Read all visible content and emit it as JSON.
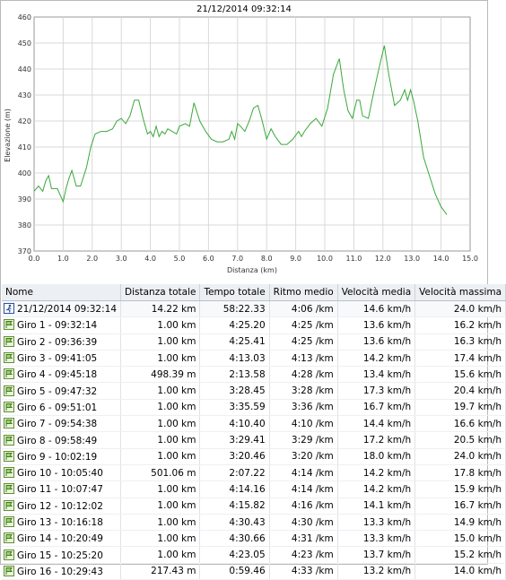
{
  "chart_data": {
    "type": "line",
    "title": "21/12/2014 09:32:14",
    "xlabel": "Distanza (km)",
    "ylabel": "Elevazione (m)",
    "xlim": [
      0,
      15
    ],
    "ylim": [
      370,
      460
    ],
    "xticks": [
      "0.0",
      "1.0",
      "2.0",
      "3.0",
      "4.0",
      "5.0",
      "6.0",
      "7.0",
      "8.0",
      "9.0",
      "10.0",
      "11.0",
      "12.0",
      "13.0",
      "14.0",
      "15.0"
    ],
    "yticks": [
      "370",
      "380",
      "390",
      "400",
      "410",
      "420",
      "430",
      "440",
      "450",
      "460"
    ],
    "grid": true,
    "color": "#3aa83a",
    "series": [
      {
        "x": [
          0.0,
          0.15,
          0.3,
          0.4,
          0.5,
          0.6,
          0.8,
          1.0,
          1.1,
          1.2,
          1.3,
          1.45,
          1.6,
          1.8,
          1.95,
          2.1,
          2.3,
          2.5,
          2.7,
          2.85,
          3.0,
          3.15,
          3.3,
          3.45,
          3.6,
          3.75,
          3.9,
          4.0,
          4.1,
          4.2,
          4.3,
          4.4,
          4.5,
          4.6,
          4.75,
          4.9,
          5.0,
          5.2,
          5.35,
          5.5,
          5.7,
          5.9,
          6.1,
          6.3,
          6.5,
          6.7,
          6.8,
          6.9,
          7.0,
          7.1,
          7.25,
          7.4,
          7.55,
          7.7,
          7.85,
          8.0,
          8.15,
          8.3,
          8.5,
          8.7,
          8.9,
          9.1,
          9.2,
          9.3,
          9.5,
          9.7,
          9.9,
          10.1,
          10.3,
          10.5,
          10.65,
          10.8,
          10.95,
          11.1,
          11.2,
          11.3,
          11.5,
          11.7,
          11.9,
          12.05,
          12.2,
          12.4,
          12.6,
          12.75,
          12.85,
          12.95,
          13.05,
          13.2,
          13.4,
          13.6,
          13.8,
          14.0,
          14.2
        ],
        "y": [
          393,
          395,
          393,
          397,
          399,
          394,
          394,
          389,
          394,
          398,
          401,
          395,
          395,
          402,
          410,
          415,
          416,
          416,
          417,
          420,
          421,
          419,
          422,
          428,
          428,
          421,
          415,
          416,
          414,
          418,
          414,
          416,
          415,
          417,
          416,
          415,
          418,
          419,
          418,
          427,
          420,
          416,
          413,
          412,
          412,
          413,
          416,
          413,
          419,
          418,
          416,
          420,
          425,
          426,
          420,
          413,
          417,
          414,
          411,
          411,
          413,
          416,
          414,
          416,
          419,
          421,
          418,
          425,
          438,
          444,
          432,
          424,
          421,
          428,
          428,
          422,
          421,
          432,
          442,
          449,
          438,
          426,
          428,
          432,
          428,
          432,
          428,
          420,
          406,
          399,
          392,
          387,
          384
        ]
      }
    ]
  },
  "table": {
    "headers": [
      "Nome",
      "Distanza totale",
      "Tempo totale",
      "Ritmo medio",
      "Velocità media",
      "Velocità massima"
    ],
    "total": {
      "name": "21/12/2014 09:32:14",
      "dist": "14.22 km",
      "time": "58:22.33",
      "pace": "4:06 /km",
      "avg": "14.6 km/h",
      "max": "24.0 km/h"
    },
    "rows": [
      {
        "name": "Giro 1 - 09:32:14",
        "dist": "1.00 km",
        "time": "4:25.20",
        "pace": "4:25 /km",
        "avg": "13.6 km/h",
        "max": "16.2 km/h"
      },
      {
        "name": "Giro 2 - 09:36:39",
        "dist": "1.00 km",
        "time": "4:25.41",
        "pace": "4:25 /km",
        "avg": "13.6 km/h",
        "max": "16.3 km/h"
      },
      {
        "name": "Giro 3 - 09:41:05",
        "dist": "1.00 km",
        "time": "4:13.03",
        "pace": "4:13 /km",
        "avg": "14.2 km/h",
        "max": "17.4 km/h"
      },
      {
        "name": "Giro 4 - 09:45:18",
        "dist": "498.39 m",
        "time": "2:13.58",
        "pace": "4:28 /km",
        "avg": "13.4 km/h",
        "max": "15.6 km/h"
      },
      {
        "name": "Giro 5 - 09:47:32",
        "dist": "1.00 km",
        "time": "3:28.45",
        "pace": "3:28 /km",
        "avg": "17.3 km/h",
        "max": "20.4 km/h"
      },
      {
        "name": "Giro 6 - 09:51:01",
        "dist": "1.00 km",
        "time": "3:35.59",
        "pace": "3:36 /km",
        "avg": "16.7 km/h",
        "max": "19.7 km/h"
      },
      {
        "name": "Giro 7 - 09:54:38",
        "dist": "1.00 km",
        "time": "4:10.40",
        "pace": "4:10 /km",
        "avg": "14.4 km/h",
        "max": "16.6 km/h"
      },
      {
        "name": "Giro 8 - 09:58:49",
        "dist": "1.00 km",
        "time": "3:29.41",
        "pace": "3:29 /km",
        "avg": "17.2 km/h",
        "max": "20.5 km/h"
      },
      {
        "name": "Giro 9 - 10:02:19",
        "dist": "1.00 km",
        "time": "3:20.46",
        "pace": "3:20 /km",
        "avg": "18.0 km/h",
        "max": "24.0 km/h"
      },
      {
        "name": "Giro 10 - 10:05:40",
        "dist": "501.06 m",
        "time": "2:07.22",
        "pace": "4:14 /km",
        "avg": "14.2 km/h",
        "max": "17.8 km/h"
      },
      {
        "name": "Giro 11 - 10:07:47",
        "dist": "1.00 km",
        "time": "4:14.16",
        "pace": "4:14 /km",
        "avg": "14.2 km/h",
        "max": "15.9 km/h"
      },
      {
        "name": "Giro 12 - 10:12:02",
        "dist": "1.00 km",
        "time": "4:15.82",
        "pace": "4:16 /km",
        "avg": "14.1 km/h",
        "max": "16.7 km/h"
      },
      {
        "name": "Giro 13 - 10:16:18",
        "dist": "1.00 km",
        "time": "4:30.43",
        "pace": "4:30 /km",
        "avg": "13.3 km/h",
        "max": "14.9 km/h"
      },
      {
        "name": "Giro 14 - 10:20:49",
        "dist": "1.00 km",
        "time": "4:30.66",
        "pace": "4:31 /km",
        "avg": "13.3 km/h",
        "max": "15.0 km/h"
      },
      {
        "name": "Giro 15 - 10:25:20",
        "dist": "1.00 km",
        "time": "4:23.05",
        "pace": "4:23 /km",
        "avg": "13.7 km/h",
        "max": "15.2 km/h"
      },
      {
        "name": "Giro 16 - 10:29:43",
        "dist": "217.43 m",
        "time": "0:59.46",
        "pace": "4:33 /km",
        "avg": "13.2 km/h",
        "max": "14.0 km/h"
      }
    ]
  },
  "icons": {
    "total": "runner-icon",
    "lap": "lap-flag-icon"
  }
}
